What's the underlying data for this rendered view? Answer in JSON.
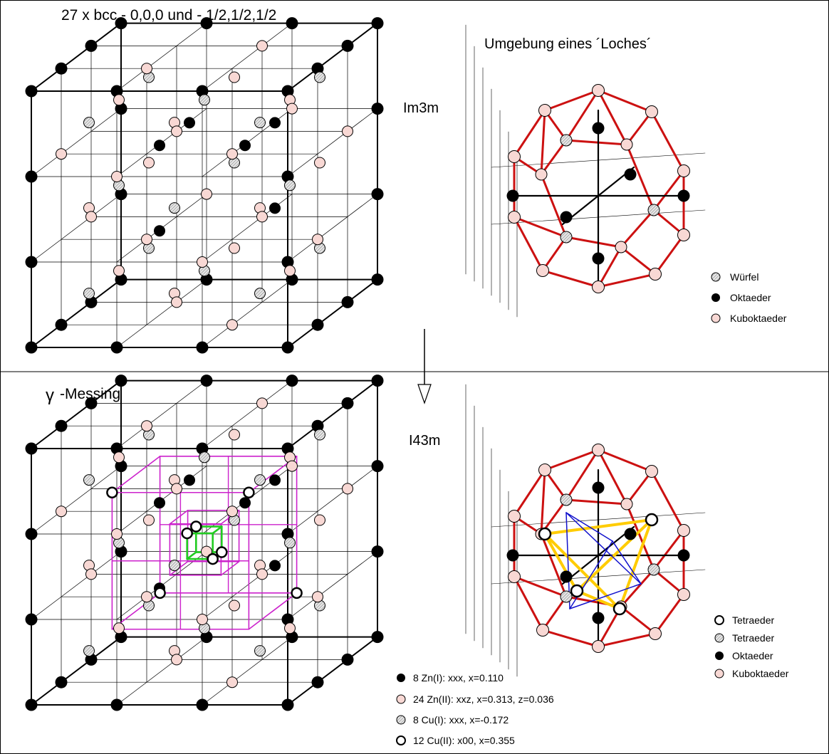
{
  "top_panel": {
    "title": "27 x bcc - 0,0,0 und - 1/2,1/2,1/2",
    "space_group": "Im3m",
    "cluster_title": "Umgebung eines ´Loches´",
    "legend": [
      {
        "symbol": "hatched",
        "label": "Würfel"
      },
      {
        "symbol": "black",
        "label": "Oktaeder"
      },
      {
        "symbol": "pink",
        "label": "Kuboktaeder"
      }
    ]
  },
  "bottom_panel": {
    "title_symbol": "γ",
    "title_text": "-Messing",
    "space_group": "I43m",
    "legend": [
      {
        "symbol": "open",
        "label": "Tetraeder"
      },
      {
        "symbol": "hatched",
        "label": "Tetraeder"
      },
      {
        "symbol": "black",
        "label": "Oktaeder"
      },
      {
        "symbol": "pink",
        "label": "Kuboktaeder"
      }
    ],
    "sites": [
      {
        "symbol": "black",
        "label": "8 Zn(I): xxx, x=0.110"
      },
      {
        "symbol": "pink",
        "label": "24 Zn(II): xxz, x=0.313, z=0.036"
      },
      {
        "symbol": "hatched",
        "label": "8 Cu(I): xxx, x=-0.172"
      },
      {
        "symbol": "open",
        "label": "12 Cu(II): x00, x=0.355"
      }
    ]
  },
  "colors": {
    "black_atom": "#000000",
    "pink_atom": "#f8d8d4",
    "hatched_atom": "#d0d0d0",
    "open_atom": "#ffffff",
    "polyhedron_red": "#cc1111",
    "magenta_grid": "#cc22cc",
    "green_grid": "#22cc22",
    "yellow_tetra": "#ffcc00",
    "blue_tetra": "#1111cc"
  }
}
